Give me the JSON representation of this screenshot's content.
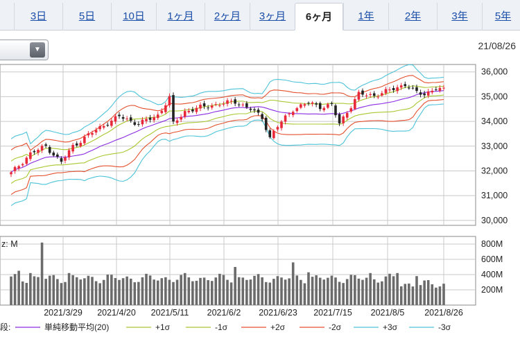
{
  "tabs": [
    {
      "label": "3日",
      "active": false
    },
    {
      "label": "5日",
      "active": false
    },
    {
      "label": "10日",
      "active": false
    },
    {
      "label": "1ヶ月",
      "active": false
    },
    {
      "label": "2ヶ月",
      "active": false
    },
    {
      "label": "3ヶ月",
      "active": false
    },
    {
      "label": "6ヶ月",
      "active": true
    },
    {
      "label": "1年",
      "active": false
    },
    {
      "label": "2年",
      "active": false
    },
    {
      "label": "3年",
      "active": false
    },
    {
      "label": "5年",
      "active": false
    }
  ],
  "header": {
    "date": "21/08/26"
  },
  "volume_label": "z: M",
  "legend_prefix": "段:",
  "colors": {
    "up": "#e8293a",
    "down": "#222222",
    "ma": "#8a2be2",
    "sigma1": "#a8c830",
    "sigma2": "#e4502e",
    "sigma3": "#4cc3d9",
    "grid": "#c8c8c8",
    "volume": "#6b6b6b"
  },
  "chart_data": {
    "type": "candlestick",
    "x_ticks": [
      "2021/3/29",
      "2021/4/20",
      "2021/5/11",
      "2021/6/2",
      "2021/6/23",
      "2021/7/15",
      "2021/8/5",
      "2021/8/26"
    ],
    "price_axis": {
      "ticks": [
        "36,000",
        "35,000",
        "34,000",
        "33,000",
        "32,000",
        "31,000",
        "30,000"
      ],
      "ylim": [
        29800,
        36300
      ]
    },
    "volume_axis": {
      "ticks": [
        "800M",
        "600M",
        "400M",
        "200M"
      ],
      "ylim": [
        0,
        900
      ]
    },
    "legend": [
      {
        "label": "単純移動平均(20)",
        "color": "#8a2be2"
      },
      {
        "label": "+1σ",
        "color": "#a8c830"
      },
      {
        "label": "-1σ",
        "color": "#a8c830"
      },
      {
        "label": "+2σ",
        "color": "#e4502e"
      },
      {
        "label": "-2σ",
        "color": "#e4502e"
      },
      {
        "label": "+3σ",
        "color": "#4cc3d9"
      },
      {
        "label": "-3σ",
        "color": "#4cc3d9"
      }
    ],
    "close_anchors": [
      [
        0,
        31900
      ],
      [
        5,
        32700
      ],
      [
        9,
        33000
      ],
      [
        13,
        32350
      ],
      [
        16,
        33000
      ],
      [
        20,
        33450
      ],
      [
        24,
        33850
      ],
      [
        28,
        34200
      ],
      [
        33,
        33900
      ],
      [
        38,
        34250
      ],
      [
        41,
        34950
      ],
      [
        42,
        33900
      ],
      [
        45,
        34400
      ],
      [
        50,
        34600
      ],
      [
        54,
        34700
      ],
      [
        58,
        34800
      ],
      [
        62,
        34500
      ],
      [
        65,
        34150
      ],
      [
        67,
        33350
      ],
      [
        69,
        33800
      ],
      [
        73,
        34500
      ],
      [
        77,
        34750
      ],
      [
        80,
        34600
      ],
      [
        83,
        34650
      ],
      [
        85,
        33900
      ],
      [
        87,
        34400
      ],
      [
        90,
        35100
      ],
      [
        94,
        35050
      ],
      [
        98,
        35250
      ],
      [
        102,
        35500
      ],
      [
        105,
        35150
      ],
      [
        107,
        35100
      ],
      [
        110,
        35350
      ],
      [
        112,
        35250
      ]
    ],
    "volume_base": 350,
    "volume_spikes": [
      [
        2,
        450
      ],
      [
        5,
        420
      ],
      [
        8,
        820
      ],
      [
        15,
        420
      ],
      [
        25,
        400
      ],
      [
        45,
        420
      ],
      [
        58,
        500
      ],
      [
        73,
        560
      ],
      [
        77,
        430
      ],
      [
        93,
        420
      ],
      [
        100,
        420
      ],
      [
        105,
        380
      ]
    ],
    "n_days": 113
  }
}
